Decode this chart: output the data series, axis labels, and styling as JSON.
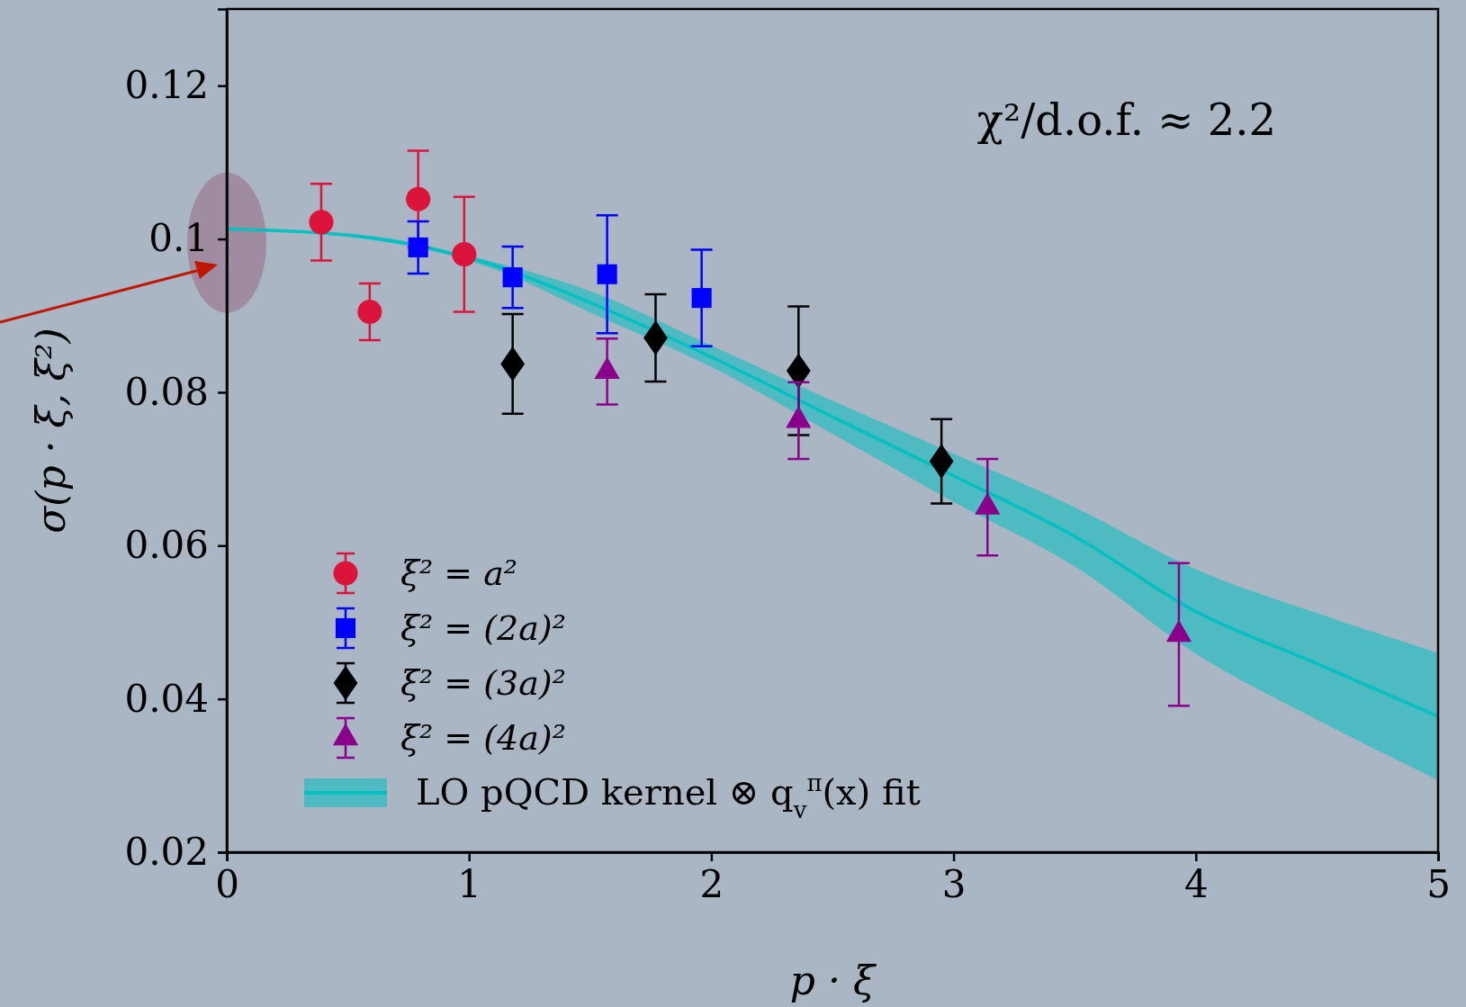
{
  "chart_data": {
    "type": "scatter",
    "xlabel": "p · ξ",
    "ylabel": "σ(p · ξ, ξ²)",
    "annotations": [
      "χ²/d.o.f. ≈ 2.2"
    ],
    "xlim": [
      0,
      5
    ],
    "xticks": [
      0,
      1,
      2,
      3,
      4,
      5
    ],
    "ylim": [
      0.02,
      0.13
    ],
    "yticks": [
      0.02,
      0.04,
      0.06,
      0.08,
      0.1,
      0.12
    ],
    "legend": "bottom left",
    "grid": false,
    "series": [
      {
        "name": "ξ² = a²",
        "color": "#dc143c",
        "marker": "circle",
        "x": [
          0.39,
          0.59,
          0.79,
          0.98
        ],
        "values": [
          0.1022,
          0.0905,
          0.1052,
          0.098
        ],
        "errors": [
          0.005,
          0.0037,
          0.0063,
          0.0075
        ]
      },
      {
        "name": "ξ² = (2a)²",
        "color": "#0000ff",
        "marker": "square",
        "x": [
          0.79,
          1.18,
          1.57,
          1.96
        ],
        "values": [
          0.0989,
          0.095,
          0.0954,
          0.0923
        ],
        "errors": [
          0.0034,
          0.004,
          0.0077,
          0.0063
        ]
      },
      {
        "name": "ξ² = (3a)²",
        "color": "#000000",
        "marker": "diamond",
        "x": [
          1.18,
          1.77,
          2.36,
          2.95
        ],
        "values": [
          0.0837,
          0.0871,
          0.0828,
          0.071
        ],
        "errors": [
          0.0065,
          0.0057,
          0.0084,
          0.0055
        ]
      },
      {
        "name": "ξ² = (4a)²",
        "color": "#8b008b",
        "marker": "triangle",
        "x": [
          1.57,
          2.36,
          3.14,
          3.93
        ],
        "values": [
          0.0827,
          0.0763,
          0.065,
          0.0484
        ],
        "errors": [
          0.0043,
          0.005,
          0.0063,
          0.0093
        ]
      },
      {
        "name": "LO pQCD kernel ⊗ q$_{v}$$^{π}$(x) fit",
        "type": "line",
        "color": "#00c0c0",
        "marker": "none",
        "x": [
          0,
          0.5,
          1.1,
          1.5,
          2,
          2.5,
          3,
          3.5,
          4,
          4.5,
          5
        ],
        "values": [
          0.1013,
          0.1005,
          0.0966,
          0.0917,
          0.0846,
          0.0768,
          0.0691,
          0.0612,
          0.0514,
          0.0446,
          0.0377
        ],
        "lower": [
          0.1013,
          0.1003,
          0.0961,
          0.0904,
          0.0833,
          0.0746,
          0.0657,
          0.0573,
          0.0459,
          0.0373,
          0.0294
        ],
        "upper": [
          0.1013,
          0.1007,
          0.097,
          0.0932,
          0.0861,
          0.0789,
          0.072,
          0.065,
          0.0569,
          0.0512,
          0.046
        ]
      }
    ]
  }
}
